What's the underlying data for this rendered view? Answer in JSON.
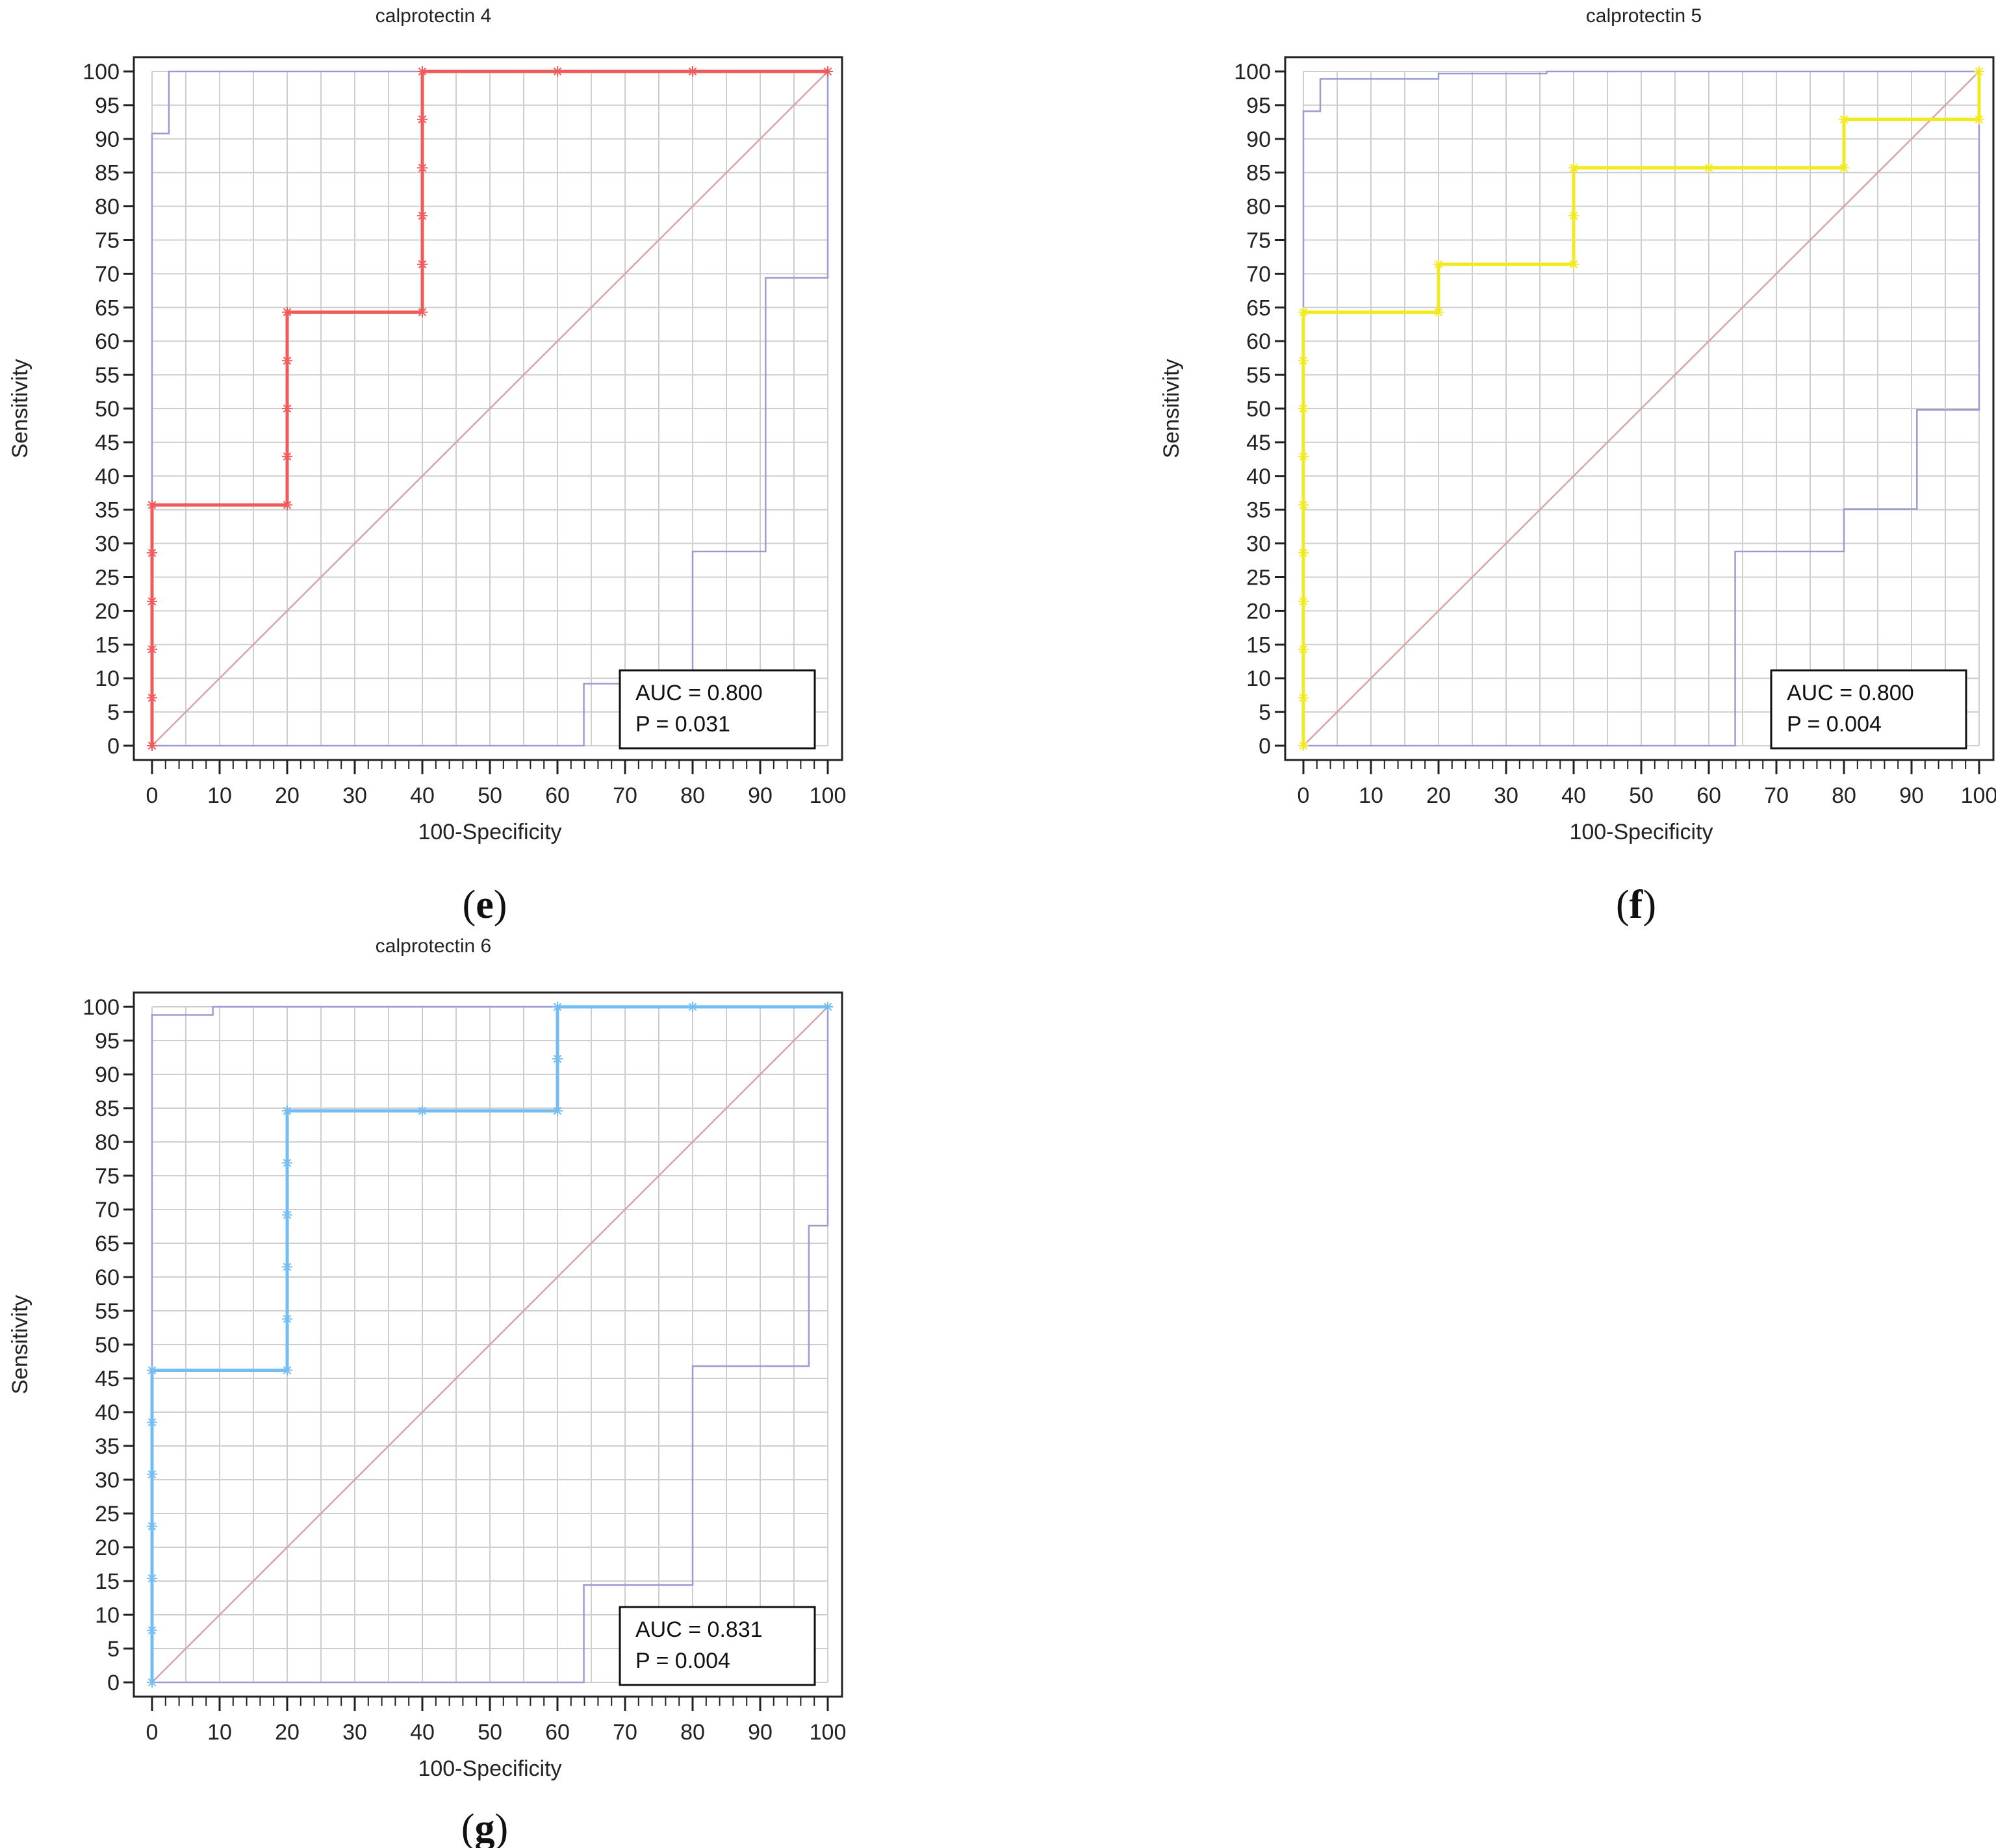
{
  "figure": {
    "background": "#ffffff",
    "grid_color": "#cfcfcf",
    "axis_color": "#222222",
    "ci_color": "#9b9bd1",
    "diagonal_color": "#d9a3a8"
  },
  "chart_data": [
    {
      "id": "e",
      "type": "line",
      "title": "calprotectin 4",
      "caption_letter": "e",
      "xlabel": "100-Specificity",
      "ylabel": "Sensitivity",
      "xlim": [
        0,
        100
      ],
      "ylim": [
        0,
        100
      ],
      "xticks": [
        "0",
        "10",
        "20",
        "30",
        "40",
        "50",
        "60",
        "70",
        "80",
        "90",
        "100"
      ],
      "yticks": [
        "0",
        "5",
        "10",
        "15",
        "20",
        "25",
        "30",
        "35",
        "40",
        "45",
        "50",
        "55",
        "60",
        "65",
        "70",
        "75",
        "80",
        "85",
        "90",
        "95",
        "100"
      ],
      "grid": true,
      "legend_placement": "bottom-right",
      "auc_label": "AUC = 0.800",
      "p_label": "P = 0.031",
      "series": [
        {
          "name": "ROC curve",
          "color": "#f05a5a",
          "points": [
            [
              0,
              0
            ],
            [
              0,
              35.7
            ],
            [
              20,
              35.7
            ],
            [
              20,
              64.3
            ],
            [
              40,
              64.3
            ],
            [
              40,
              100
            ],
            [
              100,
              100
            ]
          ],
          "markers": [
            [
              0,
              0
            ],
            [
              0,
              7.1
            ],
            [
              0,
              14.3
            ],
            [
              0,
              21.4
            ],
            [
              0,
              28.6
            ],
            [
              0,
              35.7
            ],
            [
              20,
              35.7
            ],
            [
              20,
              42.9
            ],
            [
              20,
              50
            ],
            [
              20,
              57.1
            ],
            [
              20,
              64.3
            ],
            [
              40,
              64.3
            ],
            [
              40,
              71.4
            ],
            [
              40,
              78.6
            ],
            [
              40,
              85.7
            ],
            [
              40,
              92.9
            ],
            [
              40,
              100
            ],
            [
              60,
              100
            ],
            [
              80,
              100
            ],
            [
              100,
              100
            ]
          ]
        },
        {
          "name": "Upper 95% CI",
          "color": "#9b9bd1",
          "points": [
            [
              0,
              0
            ],
            [
              0,
              90.8
            ],
            [
              2.5,
              90.8
            ],
            [
              2.5,
              100
            ],
            [
              100,
              100
            ]
          ]
        },
        {
          "name": "Lower 95% CI",
          "color": "#9b9bd1",
          "points": [
            [
              0,
              0
            ],
            [
              63.9,
              0
            ],
            [
              63.9,
              9.2
            ],
            [
              80,
              9.2
            ],
            [
              80,
              28.8
            ],
            [
              90.8,
              28.8
            ],
            [
              90.8,
              69.4
            ],
            [
              100,
              69.4
            ],
            [
              100,
              100
            ]
          ]
        },
        {
          "name": "Reference line",
          "color": "#d9a3a8",
          "points": [
            [
              0,
              0
            ],
            [
              100,
              100
            ]
          ]
        }
      ]
    },
    {
      "id": "f",
      "type": "line",
      "title": "calprotectin 5",
      "caption_letter": "f",
      "xlabel": "100-Specificity",
      "ylabel": "Sensitivity",
      "xlim": [
        0,
        100
      ],
      "ylim": [
        0,
        100
      ],
      "xticks": [
        "0",
        "10",
        "20",
        "30",
        "40",
        "50",
        "60",
        "70",
        "80",
        "90",
        "100"
      ],
      "yticks": [
        "0",
        "5",
        "10",
        "15",
        "20",
        "25",
        "30",
        "35",
        "40",
        "45",
        "50",
        "55",
        "60",
        "65",
        "70",
        "75",
        "80",
        "85",
        "90",
        "95",
        "100"
      ],
      "grid": true,
      "legend_placement": "bottom-right",
      "auc_label": "AUC = 0.800",
      "p_label": "P = 0.004",
      "series": [
        {
          "name": "ROC curve",
          "color": "#f2ea1f",
          "points": [
            [
              0,
              0
            ],
            [
              0,
              64.3
            ],
            [
              20,
              64.3
            ],
            [
              20,
              71.4
            ],
            [
              40,
              71.4
            ],
            [
              40,
              85.7
            ],
            [
              80,
              85.7
            ],
            [
              80,
              92.9
            ],
            [
              100,
              92.9
            ],
            [
              100,
              100
            ]
          ],
          "markers": [
            [
              0,
              0
            ],
            [
              0,
              7.1
            ],
            [
              0,
              14.3
            ],
            [
              0,
              21.4
            ],
            [
              0,
              28.6
            ],
            [
              0,
              35.7
            ],
            [
              0,
              42.9
            ],
            [
              0,
              50
            ],
            [
              0,
              57.1
            ],
            [
              0,
              64.3
            ],
            [
              20,
              64.3
            ],
            [
              20,
              71.4
            ],
            [
              40,
              71.4
            ],
            [
              40,
              78.6
            ],
            [
              40,
              85.7
            ],
            [
              60,
              85.7
            ],
            [
              80,
              85.7
            ],
            [
              80,
              92.9
            ],
            [
              100,
              92.9
            ],
            [
              100,
              100
            ]
          ]
        },
        {
          "name": "Upper 95% CI",
          "color": "#9b9bd1",
          "points": [
            [
              0,
              0
            ],
            [
              0,
              94.1
            ],
            [
              2.5,
              94.1
            ],
            [
              2.5,
              98.9
            ],
            [
              20,
              98.9
            ],
            [
              20,
              99.7
            ],
            [
              36,
              99.7
            ],
            [
              36,
              100
            ],
            [
              100,
              100
            ]
          ]
        },
        {
          "name": "Lower 95% CI",
          "color": "#9b9bd1",
          "points": [
            [
              0,
              0
            ],
            [
              63.9,
              0
            ],
            [
              63.9,
              28.8
            ],
            [
              80,
              28.8
            ],
            [
              80,
              35.1
            ],
            [
              90.8,
              35.1
            ],
            [
              90.8,
              49.8
            ],
            [
              100,
              49.8
            ],
            [
              100,
              100
            ]
          ]
        },
        {
          "name": "Reference line",
          "color": "#d9a3a8",
          "points": [
            [
              0,
              0
            ],
            [
              100,
              100
            ]
          ]
        }
      ]
    },
    {
      "id": "g",
      "type": "line",
      "title": "calprotectin 6",
      "caption_letter": "g",
      "xlabel": "100-Specificity",
      "ylabel": "Sensitivity",
      "xlim": [
        0,
        100
      ],
      "ylim": [
        0,
        100
      ],
      "xticks": [
        "0",
        "10",
        "20",
        "30",
        "40",
        "50",
        "60",
        "70",
        "80",
        "90",
        "100"
      ],
      "yticks": [
        "0",
        "5",
        "10",
        "15",
        "20",
        "25",
        "30",
        "35",
        "40",
        "45",
        "50",
        "55",
        "60",
        "65",
        "70",
        "75",
        "80",
        "85",
        "90",
        "95",
        "100"
      ],
      "grid": true,
      "legend_placement": "bottom-right",
      "auc_label": "AUC = 0.831",
      "p_label": "P = 0.004",
      "series": [
        {
          "name": "ROC curve",
          "color": "#74bdf2",
          "points": [
            [
              0,
              0
            ],
            [
              0,
              46.2
            ],
            [
              20,
              46.2
            ],
            [
              20,
              84.6
            ],
            [
              60,
              84.6
            ],
            [
              60,
              100
            ],
            [
              100,
              100
            ]
          ],
          "markers": [
            [
              0,
              0
            ],
            [
              0,
              7.7
            ],
            [
              0,
              15.4
            ],
            [
              0,
              23.1
            ],
            [
              0,
              30.8
            ],
            [
              0,
              38.5
            ],
            [
              0,
              46.2
            ],
            [
              20,
              46.2
            ],
            [
              20,
              53.8
            ],
            [
              20,
              61.5
            ],
            [
              20,
              69.2
            ],
            [
              20,
              76.9
            ],
            [
              20,
              84.6
            ],
            [
              40,
              84.6
            ],
            [
              60,
              84.6
            ],
            [
              60,
              92.3
            ],
            [
              60,
              100
            ],
            [
              80,
              100
            ],
            [
              100,
              100
            ]
          ]
        },
        {
          "name": "Upper 95% CI",
          "color": "#9b9bd1",
          "points": [
            [
              0,
              0
            ],
            [
              0,
              98.8
            ],
            [
              9,
              98.8
            ],
            [
              9,
              100
            ],
            [
              100,
              100
            ]
          ]
        },
        {
          "name": "Lower 95% CI",
          "color": "#9b9bd1",
          "points": [
            [
              0,
              0
            ],
            [
              63.9,
              0
            ],
            [
              63.9,
              14.4
            ],
            [
              80,
              14.4
            ],
            [
              80,
              46.8
            ],
            [
              97.2,
              46.8
            ],
            [
              97.2,
              67.6
            ],
            [
              100,
              67.6
            ],
            [
              100,
              100
            ]
          ]
        },
        {
          "name": "Reference line",
          "color": "#d9a3a8",
          "points": [
            [
              0,
              0
            ],
            [
              100,
              100
            ]
          ]
        }
      ]
    }
  ]
}
